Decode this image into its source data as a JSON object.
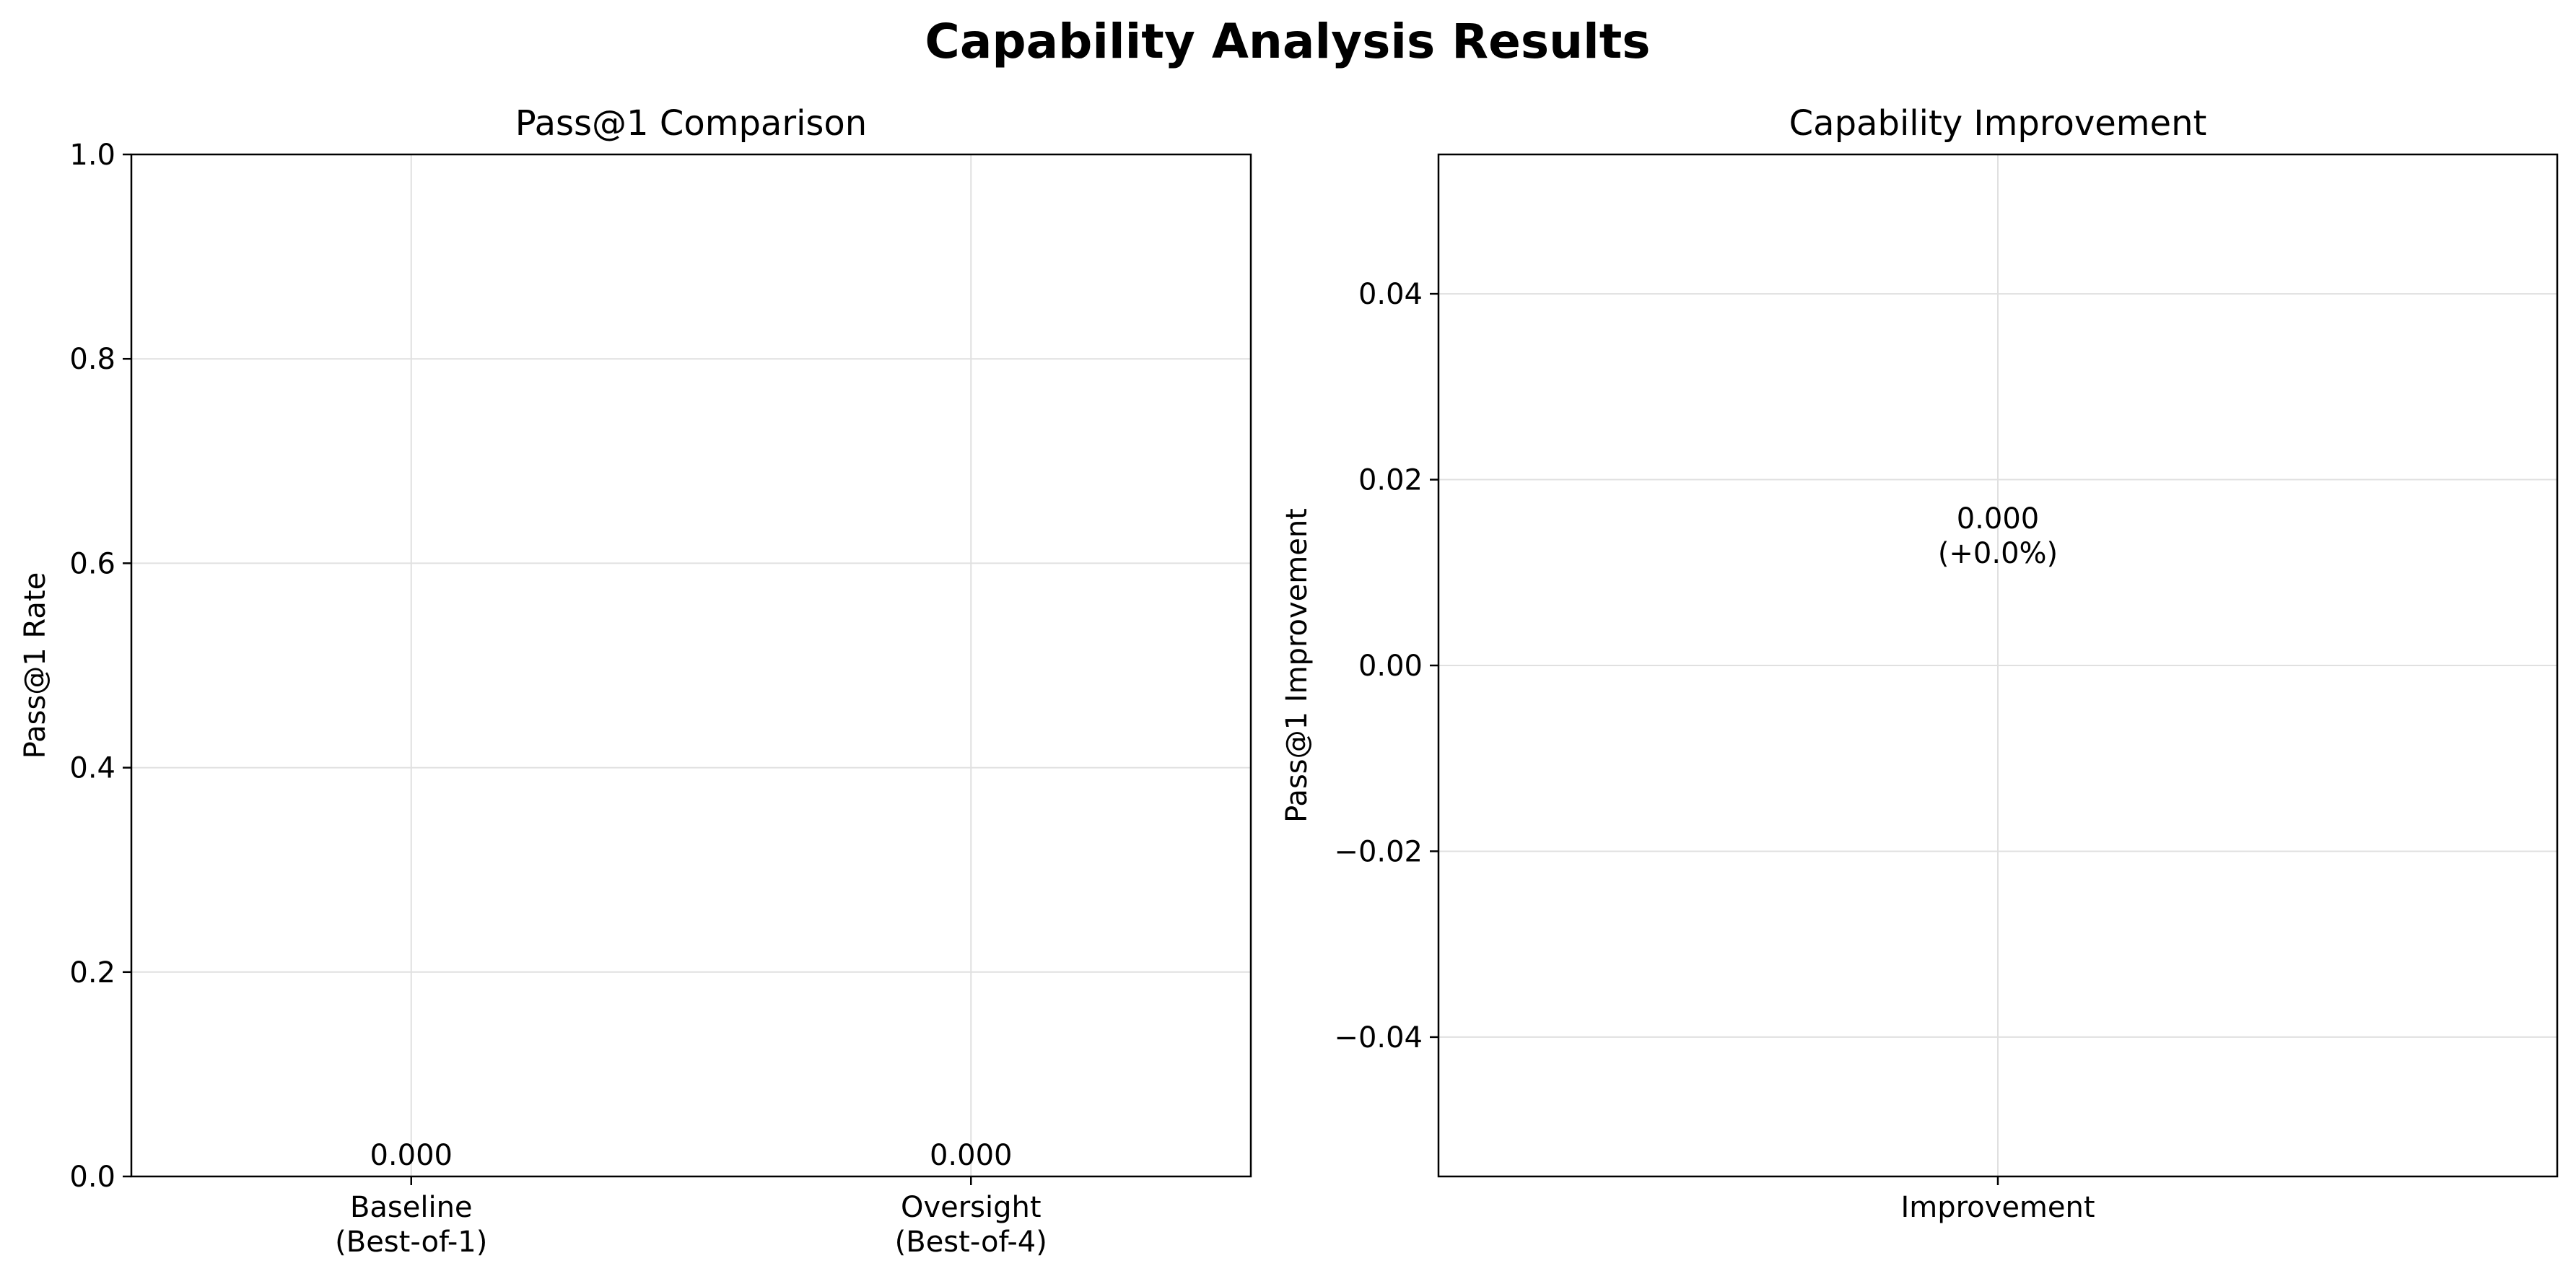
{
  "figure": {
    "title": "Capability Analysis Results"
  },
  "chart_data": [
    {
      "type": "bar",
      "title": "Pass@1 Comparison",
      "xlabel": "",
      "ylabel": "Pass@1 Rate",
      "categories": [
        [
          "Baseline",
          "(Best-of-1)"
        ],
        [
          "Oversight",
          "(Best-of-4)"
        ]
      ],
      "values": [
        0.0,
        0.0
      ],
      "data_labels": [
        [
          "0.000"
        ],
        [
          "0.000"
        ]
      ],
      "ylim": [
        0.0,
        1.0
      ],
      "yticks": [
        0.0,
        0.2,
        0.4,
        0.6,
        0.8,
        1.0
      ],
      "ytick_labels": [
        "0.0",
        "0.2",
        "0.4",
        "0.6",
        "0.8",
        "1.0"
      ],
      "grid": true
    },
    {
      "type": "bar",
      "title": "Capability Improvement",
      "xlabel": "",
      "ylabel": "Pass@1 Improvement",
      "categories": [
        [
          "Improvement"
        ]
      ],
      "values": [
        0.0
      ],
      "data_labels": [
        [
          "0.000",
          "(+0.0%)"
        ]
      ],
      "ylim": [
        -0.055,
        0.055
      ],
      "yticks": [
        -0.04,
        -0.02,
        0.0,
        0.02,
        0.04
      ],
      "ytick_labels": [
        "−0.04",
        "−0.02",
        "0.00",
        "0.02",
        "0.04"
      ],
      "grid": true
    }
  ]
}
